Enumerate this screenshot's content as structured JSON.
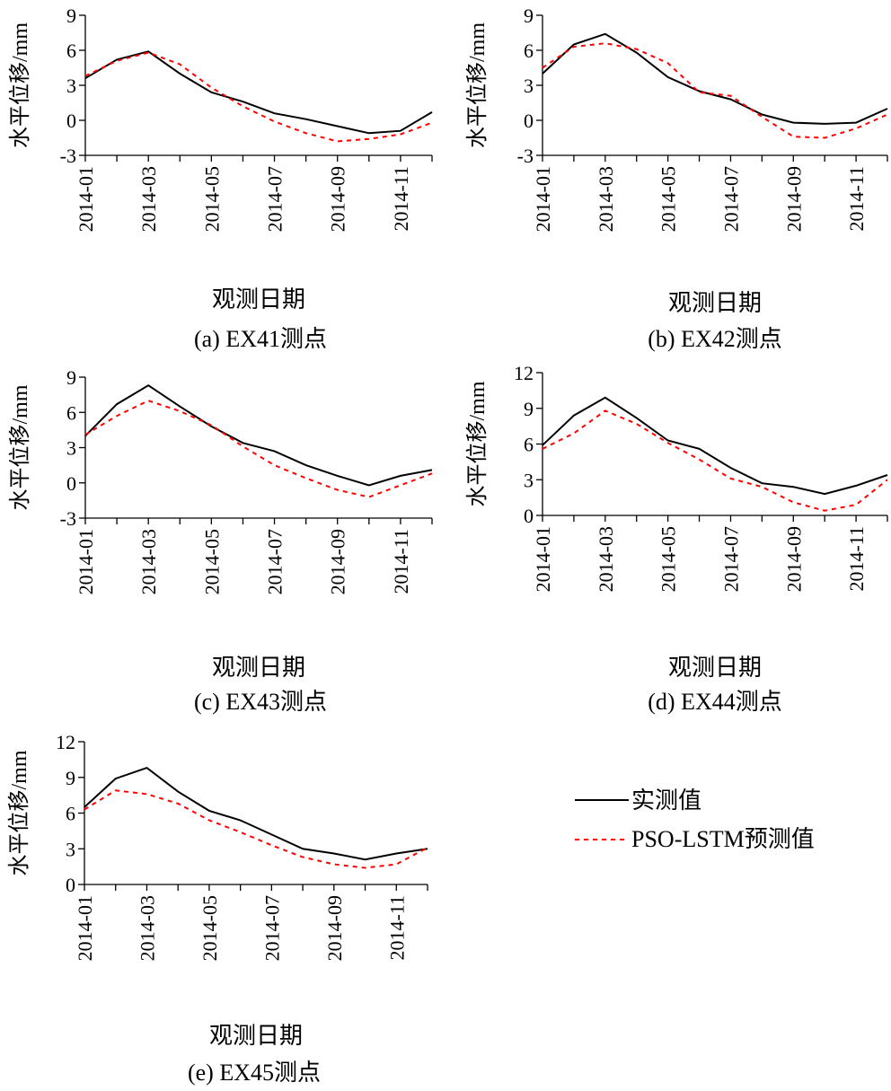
{
  "legend": {
    "measured": "实测值",
    "predicted": "PSO-LSTM预测值"
  },
  "colors": {
    "measured": "#000000",
    "predicted": "#ff0000",
    "axis": "#000000"
  },
  "chart_data": [
    {
      "type": "line",
      "caption": "(a)  EX41测点",
      "xlabel": "观测日期",
      "ylabel": "水平位移/mm",
      "x": [
        "2014-01",
        "2014-02",
        "2014-03",
        "2014-04",
        "2014-05",
        "2014-06",
        "2014-07",
        "2014-08",
        "2014-09",
        "2014-10",
        "2014-11",
        "2014-12"
      ],
      "x_tick_labels": [
        "2014-01",
        "2014-03",
        "2014-05",
        "2014-07",
        "2014-09",
        "2014-11"
      ],
      "ylim": [
        -3,
        9
      ],
      "yticks": [
        -3,
        0,
        3,
        6,
        9
      ],
      "series": [
        {
          "name": "实测值",
          "values": [
            3.6,
            5.2,
            5.9,
            4.0,
            2.4,
            1.6,
            0.6,
            0.1,
            -0.5,
            -1.1,
            -0.9,
            0.7
          ]
        },
        {
          "name": "PSO-LSTM预测值",
          "values": [
            3.8,
            5.1,
            5.8,
            4.8,
            2.8,
            1.2,
            -0.1,
            -1.1,
            -1.8,
            -1.6,
            -1.2,
            -0.2
          ]
        }
      ]
    },
    {
      "type": "line",
      "caption": "(b)  EX42测点",
      "xlabel": "观测日期",
      "ylabel": "水平位移/mm",
      "x": [
        "2014-01",
        "2014-02",
        "2014-03",
        "2014-04",
        "2014-05",
        "2014-06",
        "2014-07",
        "2014-08",
        "2014-09",
        "2014-10",
        "2014-11",
        "2014-12"
      ],
      "x_tick_labels": [
        "2014-01",
        "2014-03",
        "2014-05",
        "2014-07",
        "2014-09",
        "2014-11"
      ],
      "ylim": [
        -3,
        9
      ],
      "yticks": [
        -3,
        0,
        3,
        6,
        9
      ],
      "series": [
        {
          "name": "实测值",
          "values": [
            4.0,
            6.5,
            7.4,
            5.8,
            3.7,
            2.5,
            1.8,
            0.5,
            -0.2,
            -0.3,
            -0.2,
            1.0
          ]
        },
        {
          "name": "PSO-LSTM预测值",
          "values": [
            4.5,
            6.3,
            6.6,
            6.1,
            4.9,
            2.4,
            2.1,
            0.3,
            -1.4,
            -1.5,
            -0.7,
            0.5
          ]
        }
      ]
    },
    {
      "type": "line",
      "caption": "(c)  EX43测点",
      "xlabel": "观测日期",
      "ylabel": "水平位移/mm",
      "x": [
        "2014-01",
        "2014-02",
        "2014-03",
        "2014-04",
        "2014-05",
        "2014-06",
        "2014-07",
        "2014-08",
        "2014-09",
        "2014-10",
        "2014-11",
        "2014-12"
      ],
      "x_tick_labels": [
        "2014-01",
        "2014-03",
        "2014-05",
        "2014-07",
        "2014-09",
        "2014-11"
      ],
      "ylim": [
        -3,
        9
      ],
      "yticks": [
        -3,
        0,
        3,
        6,
        9
      ],
      "series": [
        {
          "name": "实测值",
          "values": [
            4.0,
            6.7,
            8.3,
            6.5,
            4.8,
            3.4,
            2.7,
            1.5,
            0.6,
            -0.2,
            0.6,
            1.1
          ]
        },
        {
          "name": "PSO-LSTM预测值",
          "values": [
            4.1,
            5.7,
            7.0,
            6.1,
            4.9,
            3.1,
            1.5,
            0.4,
            -0.6,
            -1.2,
            -0.2,
            0.8
          ]
        }
      ]
    },
    {
      "type": "line",
      "caption": "(d)  EX44测点",
      "xlabel": "观测日期",
      "ylabel": "水平位移/mm",
      "x": [
        "2014-01",
        "2014-02",
        "2014-03",
        "2014-04",
        "2014-05",
        "2014-06",
        "2014-07",
        "2014-08",
        "2014-09",
        "2014-10",
        "2014-11",
        "2014-12"
      ],
      "x_tick_labels": [
        "2014-01",
        "2014-03",
        "2014-05",
        "2014-07",
        "2014-09",
        "2014-11"
      ],
      "ylim": [
        0,
        12
      ],
      "yticks": [
        0,
        3,
        6,
        9,
        12
      ],
      "series": [
        {
          "name": "实测值",
          "values": [
            5.9,
            8.4,
            9.9,
            8.2,
            6.3,
            5.6,
            4.0,
            2.7,
            2.4,
            1.8,
            2.5,
            3.4
          ]
        },
        {
          "name": "PSO-LSTM预测值",
          "values": [
            5.6,
            6.9,
            8.8,
            7.7,
            6.1,
            4.7,
            3.1,
            2.4,
            1.1,
            0.4,
            0.9,
            3.0
          ]
        }
      ]
    },
    {
      "type": "line",
      "caption": "(e) EX45测点",
      "xlabel": "观测日期",
      "ylabel": "水平位移/mm",
      "x": [
        "2014-01",
        "2014-02",
        "2014-03",
        "2014-04",
        "2014-05",
        "2014-06",
        "2014-07",
        "2014-08",
        "2014-09",
        "2014-10",
        "2014-11",
        "2014-12"
      ],
      "x_tick_labels": [
        "2014-01",
        "2014-03",
        "2014-05",
        "2014-07",
        "2014-09",
        "2014-11"
      ],
      "ylim": [
        0,
        12
      ],
      "yticks": [
        0,
        3,
        6,
        9,
        12
      ],
      "series": [
        {
          "name": "实测值",
          "values": [
            6.5,
            8.9,
            9.8,
            7.8,
            6.2,
            5.4,
            4.2,
            3.0,
            2.6,
            2.1,
            2.6,
            3.0
          ]
        },
        {
          "name": "PSO-LSTM预测值",
          "values": [
            6.3,
            7.9,
            7.6,
            6.8,
            5.4,
            4.4,
            3.3,
            2.3,
            1.7,
            1.4,
            1.7,
            3.1
          ]
        }
      ]
    }
  ]
}
